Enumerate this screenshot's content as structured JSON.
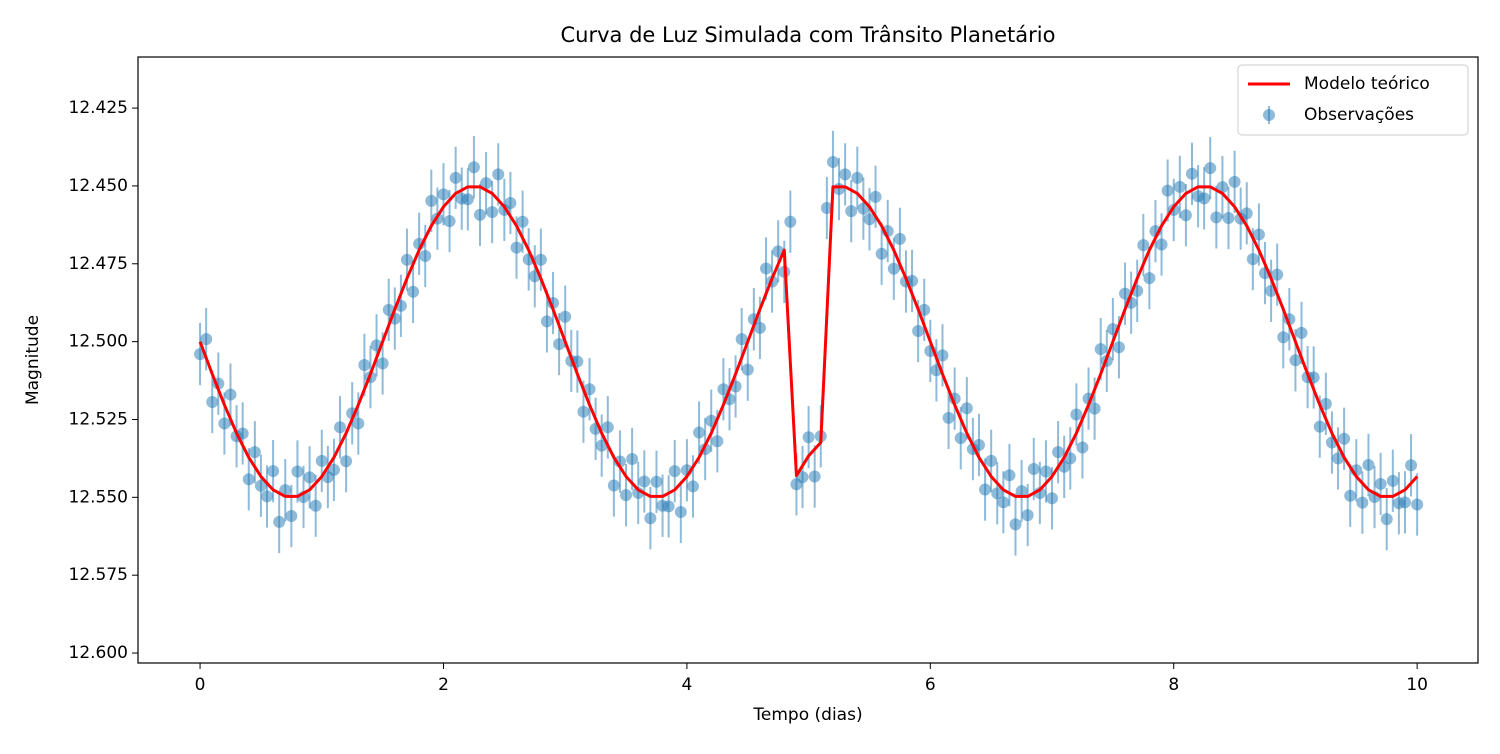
{
  "chart_data": {
    "type": "line",
    "title": "Curva de Luz Simulada com Trânsito Planetário",
    "x_label": "Tempo (dias)",
    "y_label": "Magnitude",
    "xlim": [
      -0.51,
      10.5
    ],
    "ylim": [
      12.4086,
      12.6032
    ],
    "invert_y": true,
    "xticks": [
      0,
      2,
      4,
      6,
      8,
      10
    ],
    "yticks": [
      12.425,
      {
        "value": 12.45,
        "label": "12.450"
      },
      12.475,
      {
        "value": 12.5,
        "label": "12.500"
      },
      12.525,
      {
        "value": 12.55,
        "label": "12.550"
      },
      12.575,
      {
        "value": 12.6,
        "label": "12.600"
      }
    ],
    "legend": "upper right",
    "series": [
      {
        "name": "Modelo teórico",
        "type": "line",
        "color": "#ff0000",
        "x": [
          0,
          0.1,
          0.2,
          0.3,
          0.4,
          0.5,
          0.6,
          0.7,
          0.8,
          0.9,
          1,
          1.1,
          1.2,
          1.3,
          1.4,
          1.5,
          1.6,
          1.7,
          1.8,
          1.9,
          2,
          2.1,
          2.2,
          2.3,
          2.4,
          2.5,
          2.6,
          2.7,
          2.8,
          2.9,
          3,
          3.1,
          3.2,
          3.3,
          3.4,
          3.5,
          3.6,
          3.7,
          3.8,
          3.9,
          4,
          4.1,
          4.2,
          4.3,
          4.4,
          4.5,
          4.6,
          4.7,
          4.8,
          4.9,
          5,
          5.1,
          5.2,
          5.3,
          5.4,
          5.5,
          5.6,
          5.7,
          5.8,
          5.9,
          6,
          6.1,
          6.2,
          6.3,
          6.4,
          6.5,
          6.6,
          6.7,
          6.8,
          6.9,
          7,
          7.1,
          7.2,
          7.3,
          7.4,
          7.5,
          7.6,
          7.7,
          7.8,
          7.9,
          8,
          8.1,
          8.2,
          8.3,
          8.4,
          8.5,
          8.6,
          8.7,
          8.8,
          8.9,
          9,
          9.1,
          9.2,
          9.3,
          9.4,
          9.5,
          9.6,
          9.7,
          9.8,
          9.9,
          10
        ],
        "values": [
          12.5,
          12.5104,
          12.5203,
          12.5294,
          12.5372,
          12.5433,
          12.5476,
          12.5497,
          12.5497,
          12.5476,
          12.5433,
          12.5372,
          12.5294,
          12.5203,
          12.5104,
          12.5,
          12.4896,
          12.4797,
          12.4706,
          12.4628,
          12.4567,
          12.4524,
          12.4503,
          12.4503,
          12.4524,
          12.4567,
          12.4628,
          12.4706,
          12.4797,
          12.4896,
          12.5,
          12.5104,
          12.5203,
          12.5294,
          12.5372,
          12.5433,
          12.5476,
          12.5497,
          12.5497,
          12.5476,
          12.5433,
          12.5372,
          12.5294,
          12.5203,
          12.5104,
          12.5,
          12.4896,
          12.4797,
          12.4706,
          12.543,
          12.5367,
          12.5324,
          12.4503,
          12.4503,
          12.4524,
          12.4567,
          12.4628,
          12.4706,
          12.4797,
          12.4896,
          12.5,
          12.5104,
          12.5203,
          12.5294,
          12.5372,
          12.5433,
          12.5476,
          12.5497,
          12.5497,
          12.5476,
          12.5433,
          12.5372,
          12.5294,
          12.5203,
          12.5104,
          12.5,
          12.4896,
          12.4797,
          12.4706,
          12.4628,
          12.4567,
          12.4524,
          12.4503,
          12.4503,
          12.4524,
          12.4567,
          12.4628,
          12.4706,
          12.4797,
          12.4896,
          12.5,
          12.5104,
          12.5203,
          12.5294,
          12.5372,
          12.5433,
          12.5476,
          12.5497,
          12.5497,
          12.5476,
          12.5433
        ]
      },
      {
        "name": "Observações",
        "type": "errorbar",
        "color": "#1f77b4",
        "yerr": 0.01,
        "x": [
          0,
          0.05,
          0.1,
          0.15,
          0.2,
          0.25,
          0.3,
          0.35,
          0.4,
          0.45,
          0.5,
          0.55,
          0.6,
          0.65,
          0.7,
          0.75,
          0.8,
          0.85,
          0.9,
          0.95,
          1,
          1.05,
          1.1,
          1.15,
          1.2,
          1.25,
          1.3,
          1.35,
          1.4,
          1.45,
          1.5,
          1.55,
          1.6,
          1.65,
          1.7,
          1.75,
          1.8,
          1.85,
          1.9,
          1.95,
          2,
          2.05,
          2.1,
          2.15,
          2.2,
          2.25,
          2.3,
          2.35,
          2.4,
          2.45,
          2.5,
          2.55,
          2.6,
          2.65,
          2.7,
          2.75,
          2.8,
          2.85,
          2.9,
          2.95,
          3,
          3.05,
          3.1,
          3.15,
          3.2,
          3.25,
          3.3,
          3.35,
          3.4,
          3.45,
          3.5,
          3.55,
          3.6,
          3.65,
          3.7,
          3.75,
          3.8,
          3.85,
          3.9,
          3.95,
          4,
          4.05,
          4.1,
          4.15,
          4.2,
          4.25,
          4.3,
          4.35,
          4.4,
          4.45,
          4.5,
          4.55,
          4.6,
          4.65,
          4.7,
          4.75,
          4.8,
          4.85,
          4.9,
          4.95,
          5,
          5.05,
          5.1,
          5.15,
          5.2,
          5.25,
          5.3,
          5.35,
          5.4,
          5.45,
          5.5,
          5.55,
          5.6,
          5.65,
          5.7,
          5.75,
          5.8,
          5.85,
          5.9,
          5.95,
          6,
          6.05,
          6.1,
          6.15,
          6.2,
          6.25,
          6.3,
          6.35,
          6.4,
          6.45,
          6.5,
          6.55,
          6.6,
          6.65,
          6.7,
          6.75,
          6.8,
          6.85,
          6.9,
          6.95,
          7,
          7.05,
          7.1,
          7.15,
          7.2,
          7.25,
          7.3,
          7.35,
          7.4,
          7.45,
          7.5,
          7.55,
          7.6,
          7.65,
          7.7,
          7.75,
          7.8,
          7.85,
          7.9,
          7.95,
          8,
          8.05,
          8.1,
          8.15,
          8.2,
          8.25,
          8.3,
          8.35,
          8.4,
          8.45,
          8.5,
          8.55,
          8.6,
          8.65,
          8.7,
          8.75,
          8.8,
          8.85,
          8.9,
          8.95,
          9,
          9.05,
          9.1,
          9.15,
          9.2,
          9.25,
          9.3,
          9.35,
          9.4,
          9.45,
          9.5,
          9.55,
          9.6,
          9.65,
          9.7,
          9.75,
          9.8,
          9.85,
          9.9,
          9.95,
          10
        ],
        "values": [
          12.504,
          12.4992,
          12.5194,
          12.5135,
          12.5263,
          12.517,
          12.5304,
          12.5295,
          12.5442,
          12.5355,
          12.5463,
          12.5497,
          12.5416,
          12.5579,
          12.5477,
          12.556,
          12.5417,
          12.5499,
          12.5436,
          12.5527,
          12.5383,
          12.5435,
          12.5412,
          12.5275,
          12.5384,
          12.523,
          12.5263,
          12.5075,
          12.5114,
          12.5012,
          12.507,
          12.4898,
          12.4926,
          12.4885,
          12.4737,
          12.484,
          12.4686,
          12.4725,
          12.4548,
          12.4605,
          12.4527,
          12.4613,
          12.4474,
          12.4541,
          12.4543,
          12.444,
          12.4593,
          12.4491,
          12.4584,
          12.4463,
          12.4577,
          12.4555,
          12.4698,
          12.4615,
          12.4736,
          12.479,
          12.4737,
          12.4935,
          12.4876,
          12.5008,
          12.492,
          12.5062,
          12.5064,
          12.5225,
          12.5153,
          12.528,
          12.5334,
          12.5275,
          12.5462,
          12.5385,
          12.5493,
          12.5377,
          12.5486,
          12.5449,
          12.5567,
          12.545,
          12.5527,
          12.5529,
          12.5416,
          12.5547,
          12.5413,
          12.5465,
          12.5292,
          12.5345,
          12.5254,
          12.532,
          12.5153,
          12.5185,
          12.5144,
          12.4992,
          12.509,
          12.4928,
          12.4956,
          12.4765,
          12.4807,
          12.471,
          12.4776,
          12.4615,
          12.5458,
          12.5435,
          12.5307,
          12.5433,
          12.5304,
          12.4571,
          12.4423,
          12.451,
          12.4463,
          12.4581,
          12.4474,
          12.4573,
          12.4607,
          12.4535,
          12.4718,
          12.4645,
          12.4766,
          12.467,
          12.4807,
          12.4805,
          12.4966,
          12.4898,
          12.503,
          12.5092,
          12.5044,
          12.5245,
          12.5183,
          12.531,
          12.5214,
          12.5345,
          12.5332,
          12.5475,
          12.5383,
          12.5487,
          12.5516,
          12.5429,
          12.5587,
          12.548,
          12.5557,
          12.5409,
          12.5486,
          12.5417,
          12.5503,
          12.5355,
          12.5402,
          12.5375,
          12.5234,
          12.534,
          12.5183,
          12.5215,
          12.5024,
          12.5062,
          12.496,
          12.5018,
          12.4846,
          12.4875,
          12.4837,
          12.469,
          12.4796,
          12.4645,
          12.4688,
          12.4515,
          12.4577,
          12.4503,
          12.4594,
          12.4461,
          12.4533,
          12.454,
          12.4443,
          12.4601,
          12.4504,
          12.4603,
          12.4487,
          12.4605,
          12.4588,
          12.4735,
          12.4656,
          12.478,
          12.4837,
          12.4785,
          12.4986,
          12.4928,
          12.506,
          12.4972,
          12.5114,
          12.5115,
          12.5273,
          12.52,
          12.5324,
          12.5375,
          12.5312,
          12.5495,
          12.5413,
          12.5517,
          12.5396,
          12.5499,
          12.5457,
          12.557,
          12.5447,
          12.5519,
          12.5516,
          12.5397,
          12.5523
        ]
      }
    ]
  }
}
